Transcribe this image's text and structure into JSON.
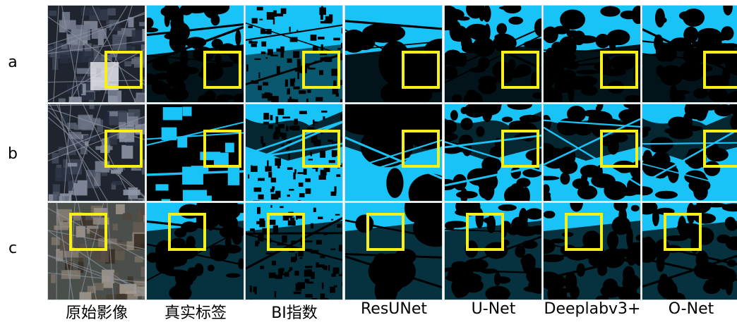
{
  "rows": [
    {
      "label": "a"
    },
    {
      "label": "b"
    },
    {
      "label": "c"
    }
  ],
  "columns": [
    {
      "label": "原始影像",
      "kind": "raw"
    },
    {
      "label": "真实标签",
      "kind": "label"
    },
    {
      "label": "BI指数",
      "kind": "bi"
    },
    {
      "label": "ResUNet",
      "kind": "resunet"
    },
    {
      "label": "U-Net",
      "kind": "unet"
    },
    {
      "label": "Deeplabv3+",
      "kind": "deeplab"
    },
    {
      "label": "O-Net",
      "kind": "onet"
    }
  ],
  "colors": {
    "water_blue": "#18c3f8",
    "background_black": "#000000",
    "highlight_box": "#f7ef18",
    "raw_base": "#2b2f3a"
  }
}
